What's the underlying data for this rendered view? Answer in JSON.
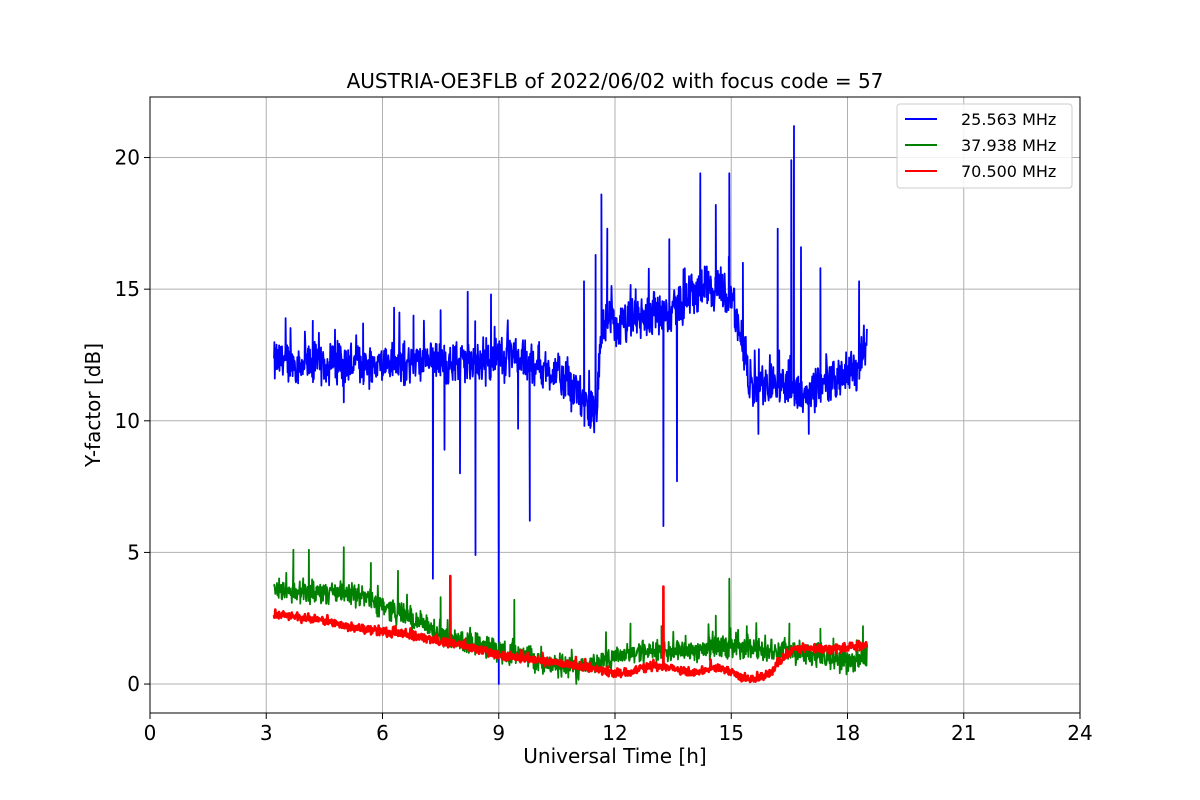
{
  "chart_data": {
    "type": "line",
    "title": "AUSTRIA-OE3FLB of 2022/06/02 with focus code = 57",
    "xlabel": "Universal Time [h]",
    "ylabel": "Y-factor [dB]",
    "xlim": [
      0,
      24
    ],
    "ylim": [
      -1.1,
      22.3
    ],
    "xticks": [
      0,
      3,
      6,
      9,
      12,
      15,
      18,
      21,
      24
    ],
    "yticks": [
      0,
      5,
      10,
      15,
      20
    ],
    "grid": true,
    "legend_position": "top-right",
    "series": [
      {
        "name": "25.563 MHz",
        "color": "#0000ff",
        "x": [
          3.2,
          3.5,
          4.0,
          4.5,
          5.0,
          5.5,
          6.0,
          6.5,
          7.0,
          7.5,
          8.0,
          8.5,
          9.0,
          9.5,
          10.0,
          10.5,
          10.8,
          11.0,
          11.3,
          11.5,
          11.7,
          12.0,
          12.5,
          13.0,
          13.5,
          14.0,
          14.3,
          14.6,
          15.0,
          15.5,
          16.0,
          16.5,
          17.0,
          17.5,
          18.0,
          18.3,
          18.5
        ],
        "values": [
          12.2,
          12.3,
          12.1,
          12.2,
          12.2,
          12.1,
          12.2,
          12.1,
          12.2,
          12.2,
          12.2,
          12.2,
          12.4,
          12.3,
          12.1,
          11.8,
          11.3,
          11.0,
          10.5,
          10.4,
          13.8,
          13.5,
          13.8,
          14.0,
          14.2,
          14.8,
          15.2,
          15.0,
          14.8,
          11.2,
          11.5,
          11.3,
          11.0,
          11.5,
          11.8,
          12.0,
          13.0
        ],
        "noise": 1.0,
        "spikes": [
          [
            3.5,
            13.9
          ],
          [
            4.2,
            13.8
          ],
          [
            5.0,
            10.7
          ],
          [
            5.5,
            13.7
          ],
          [
            6.3,
            14.3
          ],
          [
            6.8,
            14.0
          ],
          [
            7.3,
            4.0
          ],
          [
            7.5,
            14.2
          ],
          [
            7.6,
            8.9
          ],
          [
            8.0,
            8.0
          ],
          [
            8.2,
            14.9
          ],
          [
            8.4,
            4.9
          ],
          [
            8.8,
            14.8
          ],
          [
            9.0,
            0.0
          ],
          [
            9.5,
            9.7
          ],
          [
            9.8,
            6.2
          ],
          [
            11.2,
            15.3
          ],
          [
            11.5,
            16.3
          ],
          [
            11.65,
            18.6
          ],
          [
            11.8,
            17.3
          ],
          [
            13.0,
            14.9
          ],
          [
            13.25,
            6.0
          ],
          [
            13.4,
            16.9
          ],
          [
            13.6,
            7.7
          ],
          [
            14.2,
            19.4
          ],
          [
            14.6,
            18.2
          ],
          [
            14.95,
            19.4
          ],
          [
            15.3,
            16.0
          ],
          [
            15.7,
            9.5
          ],
          [
            16.2,
            17.3
          ],
          [
            16.55,
            19.9
          ],
          [
            16.62,
            21.2
          ],
          [
            16.8,
            16.6
          ],
          [
            17.3,
            15.8
          ],
          [
            17.0,
            9.5
          ],
          [
            18.3,
            15.3
          ]
        ]
      },
      {
        "name": "37.938 MHz",
        "color": "#008000",
        "x": [
          3.2,
          3.5,
          4.0,
          4.5,
          5.0,
          5.5,
          6.0,
          6.3,
          6.6,
          7.0,
          7.3,
          7.5,
          8.0,
          8.5,
          9.0,
          9.5,
          10.0,
          10.5,
          11.0,
          11.5,
          12.0,
          12.5,
          13.0,
          13.5,
          14.0,
          14.5,
          15.0,
          15.5,
          16.0,
          16.5,
          17.0,
          17.5,
          18.0,
          18.5
        ],
        "values": [
          3.6,
          3.6,
          3.5,
          3.5,
          3.4,
          3.3,
          3.0,
          2.8,
          2.6,
          2.3,
          2.0,
          1.8,
          1.6,
          1.5,
          1.3,
          1.1,
          0.9,
          0.7,
          0.6,
          0.8,
          1.1,
          1.2,
          1.2,
          1.3,
          1.3,
          1.4,
          1.4,
          1.3,
          1.3,
          1.2,
          1.1,
          1.0,
          0.9,
          1.0
        ],
        "noise": 0.55,
        "spikes": [
          [
            3.7,
            5.1
          ],
          [
            4.1,
            5.1
          ],
          [
            5.0,
            5.2
          ],
          [
            5.7,
            4.6
          ],
          [
            6.4,
            4.3
          ],
          [
            7.5,
            3.3
          ],
          [
            9.4,
            3.2
          ],
          [
            11.0,
            0.0
          ],
          [
            12.4,
            2.3
          ],
          [
            13.2,
            2.2
          ],
          [
            14.6,
            2.6
          ],
          [
            14.95,
            4.0
          ],
          [
            15.4,
            2.2
          ],
          [
            16.5,
            2.3
          ],
          [
            17.3,
            2.1
          ],
          [
            18.4,
            2.2
          ]
        ]
      },
      {
        "name": "70.500 MHz",
        "color": "#ff0000",
        "x": [
          3.2,
          3.5,
          4.0,
          4.5,
          5.0,
          5.5,
          6.0,
          6.5,
          7.0,
          7.5,
          8.0,
          8.5,
          9.0,
          9.5,
          10.0,
          10.5,
          11.0,
          11.5,
          12.0,
          12.5,
          13.0,
          13.5,
          14.0,
          14.5,
          15.0,
          15.3,
          15.6,
          16.0,
          16.3,
          16.6,
          17.0,
          17.5,
          18.0,
          18.5
        ],
        "values": [
          2.6,
          2.6,
          2.5,
          2.4,
          2.2,
          2.1,
          2.0,
          1.9,
          1.8,
          1.6,
          1.5,
          1.3,
          1.1,
          1.0,
          0.9,
          0.8,
          0.7,
          0.6,
          0.4,
          0.5,
          0.7,
          0.6,
          0.4,
          0.6,
          0.5,
          0.2,
          0.2,
          0.4,
          0.9,
          1.3,
          1.4,
          1.3,
          1.4,
          1.5
        ],
        "noise": 0.2,
        "spikes": [
          [
            7.75,
            4.1
          ],
          [
            13.25,
            3.7
          ]
        ]
      }
    ]
  }
}
